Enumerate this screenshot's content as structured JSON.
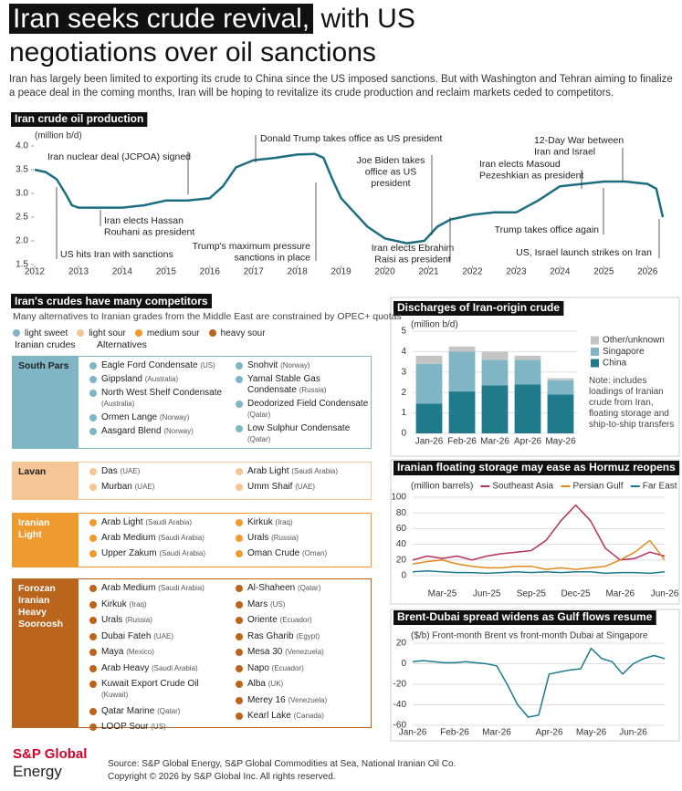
{
  "header": {
    "title_highlight": "Iran seeks crude revival,",
    "title_rest": "with US negotiations over oil sanctions",
    "subtitle": "Iran has largely been limited to exporting its crude to China since the US imposed sanctions. But with Washington and Tehran aiming to finalize a peace deal in the coming months, Iran will be hoping to revitalize its crude production and reclaim markets ceded to competitors."
  },
  "chart_data": [
    {
      "type": "line",
      "title": "Iran crude oil production",
      "y_label": "(million b/d)",
      "color": "#1c6e80",
      "grid": false,
      "x": [
        2012.0,
        2012.25,
        2012.5,
        2012.7,
        2012.85,
        2013.0,
        2013.5,
        2014.0,
        2014.5,
        2015.0,
        2015.5,
        2016.0,
        2016.3,
        2016.6,
        2017.0,
        2017.5,
        2018.0,
        2018.4,
        2018.6,
        2018.8,
        2019.0,
        2019.3,
        2019.6,
        2020.0,
        2020.5,
        2020.9,
        2021.2,
        2021.5,
        2022.0,
        2022.5,
        2023.0,
        2023.5,
        2024.0,
        2024.5,
        2025.0,
        2025.5,
        2026.0,
        2026.2,
        2026.35
      ],
      "values": [
        3.5,
        3.45,
        3.3,
        3.0,
        2.75,
        2.7,
        2.7,
        2.7,
        2.75,
        2.85,
        2.85,
        2.9,
        3.15,
        3.55,
        3.7,
        3.75,
        3.82,
        3.83,
        3.75,
        3.3,
        2.9,
        2.6,
        2.3,
        2.05,
        1.95,
        2.0,
        2.3,
        2.45,
        2.55,
        2.6,
        2.6,
        2.85,
        3.15,
        3.2,
        3.25,
        3.25,
        3.2,
        3.1,
        2.5
      ],
      "xlim": [
        2012,
        2026.6
      ],
      "xticks": [
        2012,
        2013,
        2014,
        2015,
        2016,
        2017,
        2018,
        2019,
        2020,
        2021,
        2022,
        2023,
        2024,
        2025,
        2026
      ],
      "ylim": [
        1.5,
        4.0
      ],
      "yticks": [
        1.5,
        {
          "value": 2,
          "label": "2.0"
        },
        2.5,
        {
          "value": 3,
          "label": "3.0"
        },
        3.5,
        {
          "value": 4,
          "label": "4.0"
        }
      ],
      "annotations": [
        {
          "lines": [
            "Iran nuclear deal (JCPOA) signed"
          ]
        },
        {
          "lines": [
            "Donald Trump takes office as US president"
          ]
        },
        {
          "lines": [
            "Joe Biden takes",
            "office as US",
            "president"
          ]
        },
        {
          "lines": [
            "12-Day War between",
            "Iran and Israel"
          ]
        },
        {
          "lines": [
            "Iran elects Masoud",
            "Pezeshkian as president"
          ]
        },
        {
          "lines": [
            "Iran elects Hassan",
            "Rouhani as president"
          ]
        },
        {
          "lines": [
            "US hits Iran with sanctions"
          ]
        },
        {
          "lines": [
            "Trump's maximum pressure",
            "sanctions in place"
          ]
        },
        {
          "lines": [
            "Iran elects Ebrahim",
            "Raisi as president"
          ]
        },
        {
          "lines": [
            "Trump takes office again"
          ]
        },
        {
          "lines": [
            "US, Israel launch strikes on Iran"
          ]
        }
      ]
    },
    {
      "type": "bar",
      "stacked": true,
      "title": "Discharges of Iran-origin crude",
      "y_label": "(million b/d)",
      "grid": true,
      "categories": [
        "Jan-26",
        "Feb-26",
        "Mar-26",
        "Apr-26",
        "May-26"
      ],
      "series": [
        {
          "name": "China",
          "color": "#1f7a8c",
          "values": [
            1.45,
            2.05,
            2.35,
            2.4,
            1.9
          ]
        },
        {
          "name": "Singapore",
          "color": "#7fb5c5",
          "values": [
            1.95,
            1.95,
            1.25,
            1.2,
            0.7
          ]
        },
        {
          "name": "Other/unknown",
          "color": "#c4c4c4",
          "values": [
            0.4,
            0.25,
            0.4,
            0.2,
            0.1
          ]
        }
      ],
      "ylim": [
        0,
        5
      ],
      "yticks": [
        0,
        1,
        2,
        3,
        4,
        5
      ],
      "note": "Note: includes loadings of Iranian crude from Iran, floating storage and ship-to-ship transfers"
    },
    {
      "type": "line",
      "title": "Iranian floating storage may ease as Hormuz reopens",
      "y_label": "(million barrels)",
      "grid": true,
      "categories": [
        null,
        null,
        "Mar-25",
        null,
        null,
        "Jun-25",
        null,
        null,
        "Sep-25",
        null,
        null,
        "Dec-25",
        null,
        null,
        "Mar-26",
        null,
        null,
        "Jun-26"
      ],
      "series": [
        {
          "name": "Southeast Asia",
          "color": "#b5305d",
          "values": [
            20,
            25,
            22,
            25,
            20,
            25,
            28,
            30,
            32,
            45,
            70,
            90,
            70,
            35,
            20,
            22,
            30,
            25
          ]
        },
        {
          "name": "Persian Gulf",
          "color": "#e08a1e",
          "values": [
            15,
            18,
            20,
            15,
            12,
            10,
            10,
            12,
            12,
            8,
            10,
            8,
            10,
            12,
            20,
            30,
            45,
            20
          ]
        },
        {
          "name": "Far East",
          "color": "#1c7a8c",
          "values": [
            5,
            6,
            5,
            4,
            4,
            3,
            4,
            5,
            4,
            5,
            4,
            5,
            5,
            3,
            4,
            4,
            3,
            5
          ]
        }
      ],
      "ylim": [
        0,
        100
      ],
      "yticks": [
        0,
        20,
        40,
        60,
        80,
        100
      ]
    },
    {
      "type": "line",
      "title": "Brent-Dubai spread widens as Gulf flows resume",
      "y_label": "($/b) Front-month Brent vs front-month Dubai at Singapore",
      "grid": true,
      "color": "#1c7a8c",
      "categories": [
        "Jan-26",
        null,
        null,
        null,
        "Feb-26",
        null,
        null,
        null,
        "Mar-26",
        null,
        null,
        null,
        null,
        "Apr-26",
        null,
        null,
        null,
        "May-26",
        null,
        null,
        null,
        "Jun-26",
        null,
        null,
        null
      ],
      "values": [
        2,
        3,
        2,
        1,
        1,
        2,
        1,
        0,
        -2,
        -20,
        -40,
        -52,
        -50,
        -10,
        -8,
        -6,
        -5,
        15,
        5,
        2,
        -10,
        0,
        5,
        8,
        5
      ],
      "ylim": [
        -60,
        20
      ],
      "yticks": [
        -60,
        -40,
        -20,
        0,
        20
      ]
    }
  ],
  "competitors": {
    "title": "Iran's crudes have many competitors",
    "subtitle": "Many alternatives to Iranian grades from the Middle East are constrained by OPEC+ quotas",
    "legend": [
      {
        "name": "light sweet",
        "color": "#7fb5c5"
      },
      {
        "name": "light sour",
        "color": "#f5c596"
      },
      {
        "name": "medium sour",
        "color": "#ef9a2f"
      },
      {
        "name": "heavy sour",
        "color": "#b9651d"
      }
    ],
    "col_iranian": "Iranian crudes",
    "col_alternatives": "Alternatives",
    "groups": [
      {
        "name": "South Pars",
        "alternatives": [
          [
            {
              "crude": "Eagle Ford Condensate",
              "origin": "(US)"
            },
            {
              "crude": "Gippsland",
              "origin": "(Australia)"
            },
            {
              "crude": "North West Shelf Condensate",
              "origin": "(Australia)"
            },
            {
              "crude": "Ormen Lange",
              "origin": "(Norway)"
            },
            {
              "crude": "Aasgard Blend",
              "origin": "(Norway)"
            }
          ],
          [
            {
              "crude": "Snohvit",
              "origin": "(Norway)"
            },
            {
              "crude": "Yamal Stable Gas Condensate",
              "origin": "(Russia)"
            },
            {
              "crude": "Deodorized Field Condensate",
              "origin": "(Qatar)"
            },
            {
              "crude": "Low Sulphur Condensate",
              "origin": "(Qatar)"
            }
          ]
        ]
      },
      {
        "name": "Lavan",
        "alternatives": [
          [
            {
              "crude": "Das",
              "origin": "(UAE)"
            },
            {
              "crude": "Murban",
              "origin": "(UAE)"
            }
          ],
          [
            {
              "crude": "Arab Light",
              "origin": "(Saudi Arabia)"
            },
            {
              "crude": "Umm Shaif",
              "origin": "(UAE)"
            }
          ]
        ]
      },
      {
        "name": "Iranian Light",
        "alternatives": [
          [
            {
              "crude": "Arab Light",
              "origin": "(Saudi Arabia)"
            },
            {
              "crude": "Arab Medium",
              "origin": "(Saudi Arabia)"
            },
            {
              "crude": "Upper Zakum",
              "origin": "(Saudi Arabia)"
            }
          ],
          [
            {
              "crude": "Kirkuk",
              "origin": "(Iraq)"
            },
            {
              "crude": "Urals",
              "origin": "(Russia)"
            },
            {
              "crude": "Oman Crude",
              "origin": "(Oman)"
            }
          ]
        ]
      },
      {
        "name": "Forozan Iranian Heavy Sooroosh",
        "alternatives": [
          [
            {
              "crude": "Arab Medium",
              "origin": "(Saudi Arabia)"
            },
            {
              "crude": "Kirkuk",
              "origin": "(Iraq)"
            },
            {
              "crude": "Urals",
              "origin": "(Russia)"
            },
            {
              "crude": "Dubai Fateh",
              "origin": "(UAE)"
            },
            {
              "crude": "Maya",
              "origin": "(Mexico)"
            },
            {
              "crude": "Arab Heavy",
              "origin": "(Saudi Arabia)"
            },
            {
              "crude": "Kuwait Export Crude Oil",
              "origin": "(Kuwait)"
            },
            {
              "crude": "Qatar Marine",
              "origin": "(Qatar)"
            },
            {
              "crude": "LOOP Sour",
              "origin": "(US)"
            }
          ],
          [
            {
              "crude": "Al-Shaheen",
              "origin": "(Qatar)"
            },
            {
              "crude": "Mars",
              "origin": "(US)"
            },
            {
              "crude": "Oriente",
              "origin": "(Ecuador)"
            },
            {
              "crude": "Ras Gharib",
              "origin": "(Egypt)"
            },
            {
              "crude": "Mesa 30",
              "origin": "(Venezuela)"
            },
            {
              "crude": "Napo",
              "origin": "(Ecuador)"
            },
            {
              "crude": "Alba",
              "origin": "(UK)"
            },
            {
              "crude": "Merey 16",
              "origin": "(Venezuela)"
            },
            {
              "crude": "Kearl Lake",
              "origin": "(Canada)"
            }
          ]
        ]
      }
    ]
  },
  "footer": {
    "brand": "S&P Global",
    "brand_sub": "Energy",
    "source": "Source: S&P Global Energy, S&P Global Commodities at Sea, National Iranian Oil Co.",
    "copyright": "Copyright © 2026 by S&P Global Inc. All rights reserved."
  }
}
